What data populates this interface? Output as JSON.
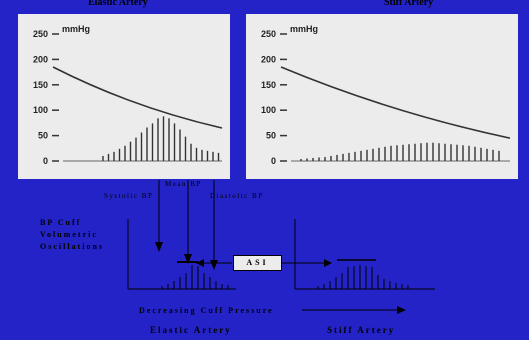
{
  "titles": {
    "left": "Elastic Artery",
    "right": "Stiff Artery"
  },
  "plot": {
    "unit": "mmHg",
    "ticks": [
      "250",
      "200",
      "150",
      "100",
      "50",
      "0"
    ],
    "tick_values": [
      250,
      200,
      150,
      100,
      50,
      0
    ],
    "ymax": 250,
    "elastic": {
      "cuff_pressure": {
        "start": 185,
        "end": 65
      },
      "oscillations": [
        10,
        14,
        18,
        24,
        30,
        38,
        46,
        56,
        66,
        74,
        84,
        88,
        84,
        74,
        62,
        48,
        34,
        26,
        22,
        20,
        18,
        16
      ]
    },
    "stiff": {
      "cuff_pressure": {
        "start": 185,
        "end": 45
      },
      "oscillations": [
        4,
        5,
        6,
        7,
        8,
        10,
        12,
        14,
        16,
        18,
        20,
        22,
        24,
        26,
        28,
        30,
        31,
        32,
        33,
        34,
        35,
        36,
        36,
        35,
        34,
        33,
        32,
        31,
        30,
        28,
        26,
        24,
        22,
        20
      ]
    }
  },
  "diagram": {
    "cuff_label": [
      "BP Cuff",
      "Volumetric",
      "Oscillations"
    ],
    "systolic": "Systolic BP",
    "mean": "Mean BP",
    "diastolic": "Diastolic BP",
    "asi": "ASI",
    "decreasing": "Decreasing Cuff Pressure",
    "elastic": "Elastic Artery",
    "stiff": "Stiff Artery",
    "elastic_bars": [
      3,
      5,
      8,
      12,
      16,
      24,
      23,
      16,
      12,
      8,
      5,
      4
    ],
    "stiff_bars": [
      3,
      5,
      8,
      12,
      16,
      22,
      23,
      24,
      23,
      22,
      14,
      10,
      8,
      6,
      5,
      4
    ]
  }
}
